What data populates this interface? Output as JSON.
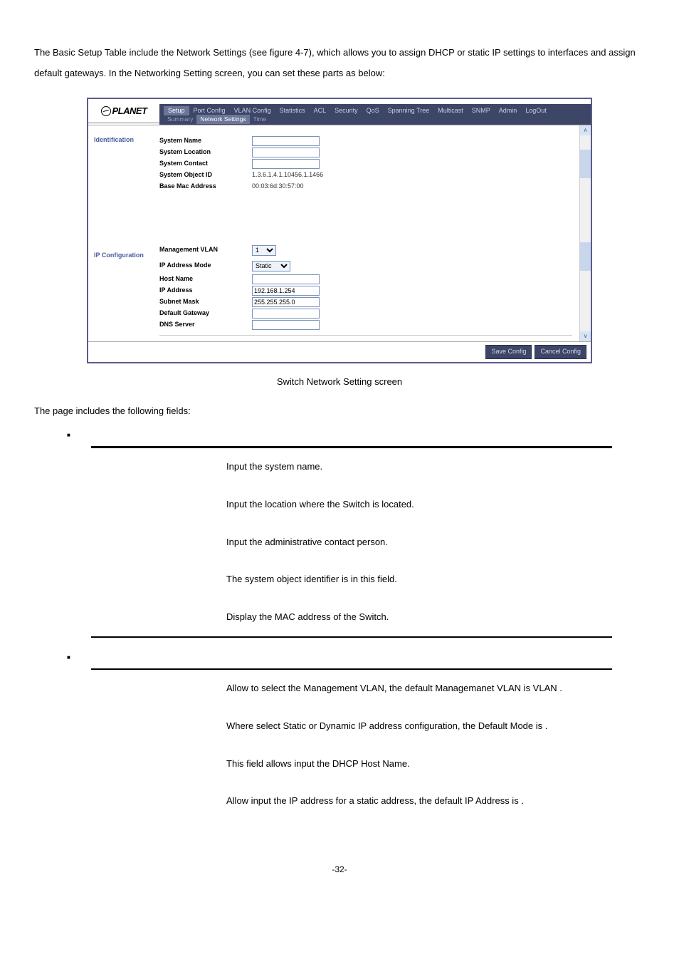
{
  "intro": "The Basic Setup Table include the Network Settings (see figure 4-7), which allows you to assign DHCP or static IP settings to interfaces and assign default gateways. In the Networking Setting screen, you can set these parts as below:",
  "screenshot": {
    "logo": "PLANET",
    "menu": [
      "Setup",
      "Port Config",
      "VLAN Config",
      "Statistics",
      "ACL",
      "Security",
      "QoS",
      "Spanning Tree",
      "Multicast",
      "SNMP",
      "Admin",
      "LogOut"
    ],
    "menu_active_idx": 0,
    "submenu": [
      "Summary",
      "Network Settings",
      "Time"
    ],
    "submenu_active_idx": 1,
    "sections": {
      "ident": {
        "title": "Identification",
        "rows": [
          {
            "label": "System Name",
            "input": true,
            "value": ""
          },
          {
            "label": "System Location",
            "input": true,
            "value": ""
          },
          {
            "label": "System Contact",
            "input": true,
            "value": ""
          },
          {
            "label": "System Object ID",
            "input": false,
            "value": "1.3.6.1.4.1.10456.1.1466"
          },
          {
            "label": "Base Mac Address",
            "input": false,
            "value": "00:03:6d:30:57:00"
          }
        ]
      },
      "ipconf": {
        "title": "IP Configuration",
        "rows": [
          {
            "label": "Management VLAN",
            "type": "select",
            "value": "1"
          },
          {
            "label": "IP Address Mode",
            "type": "select",
            "value": "Static"
          },
          {
            "label": "Host Name",
            "type": "input",
            "value": ""
          },
          {
            "label": "IP Address",
            "type": "input",
            "value": "192.168.1.254"
          },
          {
            "label": "Subnet Mask",
            "type": "input",
            "value": "255.255.255.0"
          },
          {
            "label": "Default Gateway",
            "type": "input",
            "value": ""
          },
          {
            "label": "DNS Server",
            "type": "input",
            "value": ""
          }
        ]
      }
    },
    "buttons": [
      "Save Config",
      "Cancel Config"
    ]
  },
  "caption": "Switch Network Setting screen",
  "body_text": "The page includes the following fields:",
  "deftables": [
    {
      "bullet": "",
      "rows": [
        {
          "label": "",
          "desc": "Input the system name."
        },
        {
          "label": "",
          "desc": "Input the location where the Switch is located."
        },
        {
          "label": "",
          "desc": "Input the administrative contact person."
        },
        {
          "label": "",
          "desc": "The system object identifier is in this field."
        },
        {
          "label": "",
          "desc": "Display the MAC address of the Switch."
        }
      ]
    },
    {
      "bullet": "",
      "rows": [
        {
          "label": "",
          "desc": "Allow to select the Management VLAN, the default Managemanet VLAN is VLAN   ."
        },
        {
          "label": "",
          "desc": "Where select Static or Dynamic IP address configuration, the Default Mode is        ."
        },
        {
          "label": "",
          "desc": "This field allows input the DHCP Host Name."
        },
        {
          "label": "",
          "desc": "Allow input the IP address for a static address, the default IP Address is               ."
        }
      ]
    }
  ],
  "page_num": "-32-",
  "colors": {
    "menubar": "#3e4667",
    "menutext": "#c9cee0",
    "section_blue": "#4a5c9e",
    "border": "#5b5b8b"
  }
}
